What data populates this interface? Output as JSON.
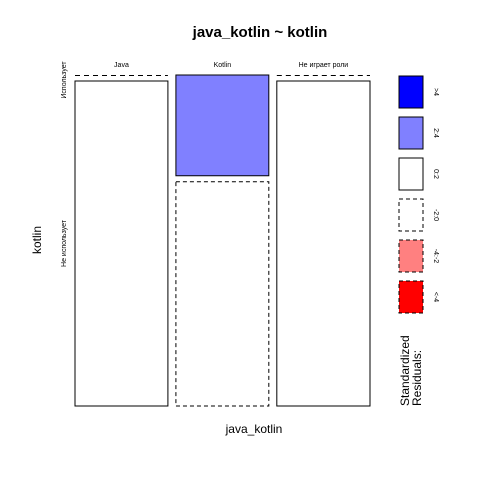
{
  "chart_data": {
    "type": "mosaic",
    "title": "java_kotlin ~ kotlin",
    "xlabel": "java_kotlin",
    "ylabel": "kotlin",
    "x_categories": [
      "Java",
      "Kotlin",
      "Не играет роли"
    ],
    "y_categories": [
      "Использует",
      "Не использует"
    ],
    "x_proportions": [
      0.333,
      0.333,
      0.334
    ],
    "cells": [
      {
        "x": "Java",
        "y": "Использует",
        "proportion": 0.0,
        "residual_class": "-2:0"
      },
      {
        "x": "Java",
        "y": "Не использует",
        "proportion": 1.0,
        "residual_class": "0:2"
      },
      {
        "x": "Kotlin",
        "y": "Использует",
        "proportion": 0.31,
        "residual_class": "2:4"
      },
      {
        "x": "Kotlin",
        "y": "Не использует",
        "proportion": 0.69,
        "residual_class": "-2:0"
      },
      {
        "x": "Не играет роли",
        "y": "Использует",
        "proportion": 0.0,
        "residual_class": "-2:0"
      },
      {
        "x": "Не играет роли",
        "y": "Не использует",
        "proportion": 1.0,
        "residual_class": "0:2"
      }
    ],
    "legend": {
      "title_lines": [
        "Standardized",
        "Residuals:"
      ],
      "position": "right",
      "items": [
        {
          "label": ">4",
          "color": "#0000ff",
          "border": "solid"
        },
        {
          "label": "2:4",
          "color": "#8080ff",
          "border": "solid"
        },
        {
          "label": "0:2",
          "color": "#ffffff",
          "border": "solid"
        },
        {
          "label": "-2:0",
          "color": "#ffffff",
          "border": "dashed"
        },
        {
          "label": "-4:-2",
          "color": "#ff8080",
          "border": "dashed"
        },
        {
          "label": "<-4",
          "color": "#ff0000",
          "border": "dashed"
        }
      ]
    }
  }
}
